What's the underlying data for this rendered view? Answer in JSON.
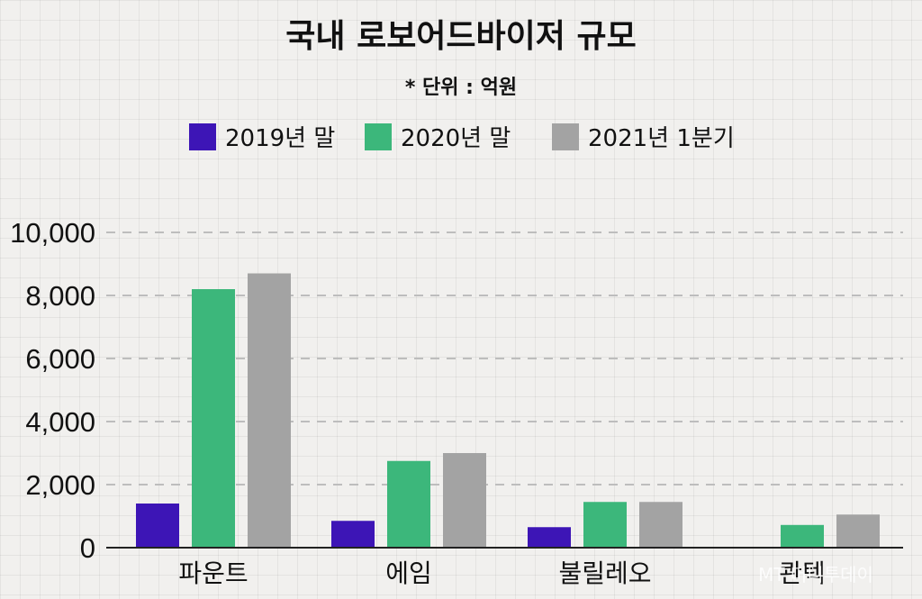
{
  "chart_data": {
    "type": "bar",
    "title": "국내 로보어드바이저 규모",
    "subtitle": "* 단위 : 억원",
    "categories": [
      "파운트",
      "에임",
      "불릴레오",
      "콴텍"
    ],
    "series": [
      {
        "name": "2019년 말",
        "color": "#3d15b6",
        "values": [
          1400,
          850,
          650,
          null
        ]
      },
      {
        "name": "2020년 말",
        "color": "#3cb77b",
        "values": [
          8200,
          2750,
          1450,
          720
        ]
      },
      {
        "name": "2021년 1분기",
        "color": "#a3a3a3",
        "values": [
          8700,
          3000,
          1450,
          1050
        ]
      }
    ],
    "yticks": [
      "10,000",
      "8,000",
      "6,000",
      "4,000",
      "2,000",
      "0"
    ],
    "ylim": [
      0,
      10000
    ],
    "xlabel": "",
    "ylabel": "",
    "grid": "dashed horizontal",
    "legend_position": "top-center"
  },
  "watermark": "MT 머니투데이"
}
